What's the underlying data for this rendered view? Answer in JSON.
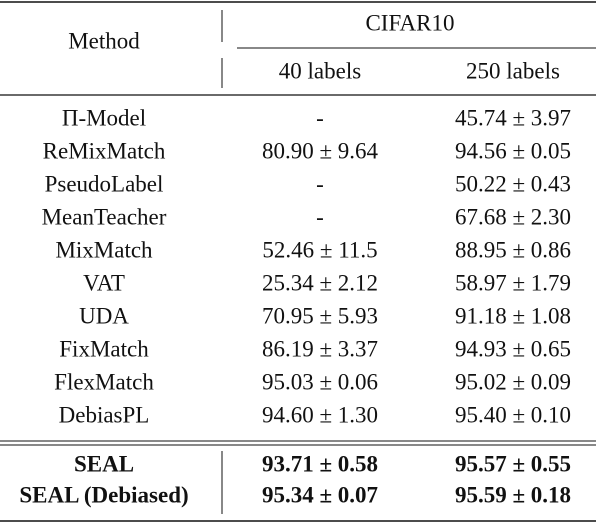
{
  "table": {
    "header": {
      "method": "Method",
      "dataset": "CIFAR10",
      "columns": [
        "40 labels",
        "250 labels"
      ]
    },
    "rows": [
      [
        "Π-Model",
        "-",
        "45.74 ± 3.97"
      ],
      [
        "ReMixMatch",
        "80.90 ± 9.64",
        "94.56 ± 0.05"
      ],
      [
        "PseudoLabel",
        "-",
        "50.22 ± 0.43"
      ],
      [
        "MeanTeacher",
        "-",
        "67.68 ± 2.30"
      ],
      [
        "MixMatch",
        "52.46 ± 11.5",
        "88.95 ± 0.86"
      ],
      [
        "VAT",
        "25.34 ± 2.12",
        "58.97 ± 1.79"
      ],
      [
        "UDA",
        "70.95 ± 5.93",
        "91.18 ± 1.08"
      ],
      [
        "FixMatch",
        "86.19 ± 3.37",
        "94.93 ± 0.65"
      ],
      [
        "FlexMatch",
        "95.03 ± 0.06",
        "95.02 ± 0.09"
      ],
      [
        "DebiasPL",
        "94.60 ± 1.30",
        "95.40 ± 0.10"
      ]
    ],
    "highlighted_rows": [
      [
        "SEAL",
        "93.71 ± 0.58",
        "95.57 ± 0.55"
      ],
      [
        "SEAL (Debiased)",
        "95.34 ± 0.07",
        "95.59 ± 0.18"
      ]
    ]
  }
}
